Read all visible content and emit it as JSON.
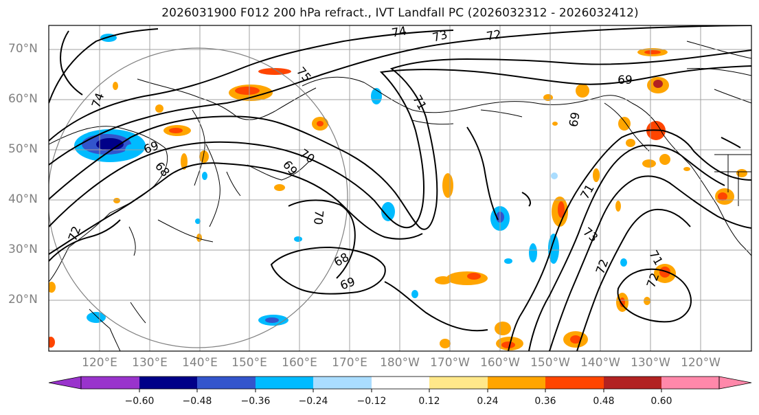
{
  "title": "2026031900 F012 200 hPa refract., IVT Landfall PC (2026032312 - 2026032412)",
  "lat_labels": [
    "70°N",
    "60°N",
    "50°N",
    "40°N",
    "30°N",
    "20°N"
  ],
  "lon_labels": [
    "120°E",
    "130°E",
    "140°E",
    "150°E",
    "160°E",
    "170°E",
    "180°W",
    "170°W",
    "160°W",
    "150°W",
    "140°W",
    "130°W",
    "120°W"
  ],
  "contour_labels": [
    "74",
    "73",
    "72",
    "75",
    "69",
    "71",
    "74",
    "69",
    "68",
    "70",
    "69",
    "71",
    "72",
    "73",
    "71",
    "72",
    "70",
    "68",
    "69",
    "72",
    "69"
  ],
  "colorbar": {
    "ticks": [
      "−0.60",
      "−0.48",
      "−0.36",
      "−0.24",
      "−0.12",
      "0.12",
      "0.24",
      "0.36",
      "0.48",
      "0.60"
    ],
    "colors": [
      "#9933cc",
      "#000088",
      "#3355cc",
      "#00bbff",
      "#aaddff",
      "#ffffff",
      "#ffe88a",
      "#ffa500",
      "#ff4500",
      "#b22222",
      "#ff88aa"
    ]
  },
  "map_style": {
    "contour_color": "#000000",
    "grid_color": "#a0a0a0",
    "circle_color": "#808080"
  }
}
